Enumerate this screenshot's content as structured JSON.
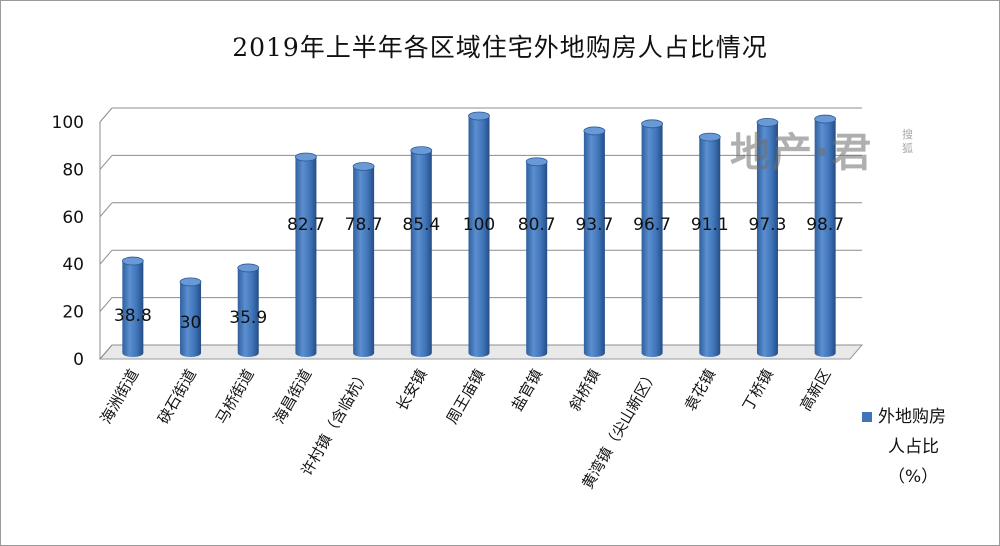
{
  "watermark": {
    "main": "地产·君",
    "sub": "搜狐"
  },
  "chart_data": {
    "type": "bar",
    "title": "2019年上半年各区域住宅外地购房人占比情况",
    "categories": [
      "海洲街道",
      "硖石街道",
      "马桥街道",
      "海昌街道",
      "许村镇（含临杭）",
      "长安镇",
      "周王庙镇",
      "盐官镇",
      "斜桥镇",
      "黄湾镇（尖山新区）",
      "袁花镇",
      "丁桥镇",
      "高新区"
    ],
    "series": [
      {
        "name": "外地购房人占比（%）",
        "values": [
          38.8,
          30,
          35.9,
          82.7,
          78.7,
          85.4,
          100,
          80.7,
          93.7,
          96.7,
          91.1,
          97.3,
          98.7
        ],
        "color": "#3f74b8"
      }
    ],
    "data_labels": [
      "38.8",
      "30",
      "35.9",
      "82.7",
      "78.7",
      "85.4",
      "100",
      "80.7",
      "93.7",
      "96.7",
      "91.1",
      "97.3",
      "98.7"
    ],
    "yticks": [
      "0",
      "20",
      "40",
      "60",
      "80",
      "100"
    ],
    "ylim": [
      0,
      100
    ],
    "xlabel": "",
    "ylabel": "",
    "grid": true,
    "legend": {
      "position": "right",
      "lines": [
        "外地购房",
        "人占比",
        "（%）"
      ]
    }
  }
}
